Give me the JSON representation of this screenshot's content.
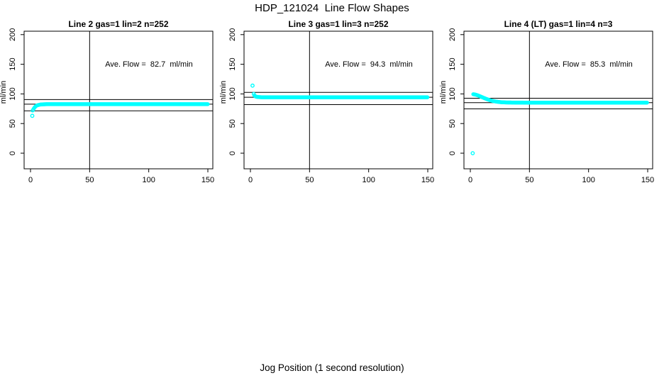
{
  "title": "HDP_121024  Line Flow Shapes",
  "xlabel": "Jog Position (1 second resolution)",
  "ylabel": "ml/min",
  "colors": {
    "points": "#00FFFF",
    "axis": "#000000",
    "background": "#FFFFFF"
  },
  "chart_data": [
    {
      "type": "scatter",
      "title": "Line 2 gas=1 lin=2 n=252",
      "annotation": "Ave. Flow =  82.7  ml/min",
      "ave_flow_ml_min": 82.7,
      "n": 252,
      "xlim": [
        0,
        150
      ],
      "ylim": [
        0,
        200
      ],
      "xticks": [
        0,
        50,
        100,
        150
      ],
      "yticks": [
        0,
        50,
        100,
        150,
        200
      ],
      "vline_x": 50,
      "hline_mean": 82.7,
      "hline_upper": 90.5,
      "hline_lower": 71.5,
      "profile": [
        [
          1.8,
          72
        ],
        [
          3,
          76
        ],
        [
          4,
          78.5
        ],
        [
          5,
          80
        ],
        [
          6,
          81
        ],
        [
          8,
          82
        ],
        [
          10,
          82.4
        ],
        [
          14,
          82.7
        ],
        [
          150,
          82.7
        ]
      ],
      "outliers": [
        [
          1.5,
          63
        ]
      ]
    },
    {
      "type": "scatter",
      "title": "Line 3 gas=1 lin=3 n=252",
      "annotation": "Ave. Flow =  94.3  ml/min",
      "ave_flow_ml_min": 94.3,
      "n": 252,
      "xlim": [
        0,
        150
      ],
      "ylim": [
        0,
        200
      ],
      "xticks": [
        0,
        50,
        100,
        150
      ],
      "yticks": [
        0,
        50,
        100,
        150,
        200
      ],
      "vline_x": 50,
      "hline_mean": 94.3,
      "hline_upper": 102.5,
      "hline_lower": 82,
      "profile": [
        [
          2.8,
          100
        ],
        [
          3.5,
          97
        ],
        [
          4.5,
          95.5
        ],
        [
          6,
          94.8
        ],
        [
          9,
          94.4
        ],
        [
          13,
          94.3
        ],
        [
          150,
          94.3
        ]
      ],
      "outliers": [
        [
          1.8,
          114
        ]
      ]
    },
    {
      "type": "scatter",
      "title": "Line 4 (LT) gas=1 lin=4 n=3",
      "annotation": "Ave. Flow =  85.3  ml/min",
      "ave_flow_ml_min": 85.3,
      "n": 3,
      "xlim": [
        0,
        150
      ],
      "ylim": [
        0,
        200
      ],
      "xticks": [
        0,
        50,
        100,
        150
      ],
      "yticks": [
        0,
        50,
        100,
        150,
        200
      ],
      "vline_x": 50,
      "hline_mean": 85.3,
      "hline_upper": 92.7,
      "hline_lower": 74.7,
      "profile": [
        [
          2.5,
          99.5
        ],
        [
          4,
          99
        ],
        [
          6,
          97.8
        ],
        [
          8,
          96.2
        ],
        [
          10,
          94.5
        ],
        [
          12,
          92.8
        ],
        [
          14,
          91.2
        ],
        [
          16,
          89.8
        ],
        [
          18,
          88.6
        ],
        [
          20,
          87.7
        ],
        [
          23,
          86.7
        ],
        [
          26,
          86
        ],
        [
          30,
          85.6
        ],
        [
          36,
          85.4
        ],
        [
          45,
          85.3
        ],
        [
          150,
          85.3
        ]
      ],
      "outliers": [
        [
          2,
          0
        ]
      ]
    }
  ]
}
